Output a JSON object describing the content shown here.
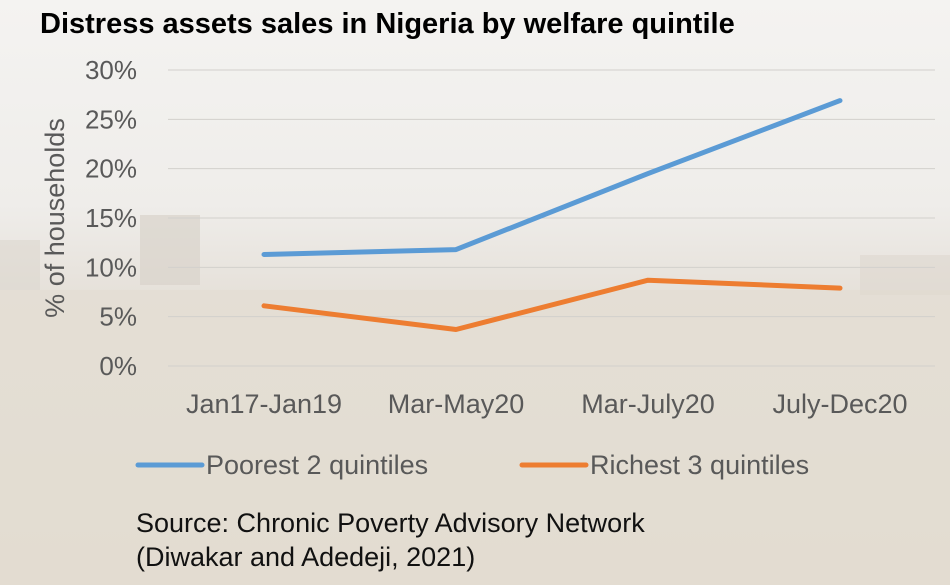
{
  "chart_data": {
    "type": "line",
    "title": "Distress assets sales in Nigeria by welfare quintile",
    "ylabel": "% of households",
    "xlabel": "",
    "categories": [
      "Jan17-Jan19",
      "Mar-May20",
      "Mar-July20",
      "July-Dec20"
    ],
    "y_ticks": [
      "0%",
      "5%",
      "10%",
      "15%",
      "20%",
      "25%",
      "30%"
    ],
    "ylim": [
      0,
      30
    ],
    "grid": true,
    "legend_position": "bottom",
    "series": [
      {
        "name": "Poorest 2 quintiles",
        "color": "#5b9bd5",
        "values": [
          11.3,
          11.8,
          19.5,
          26.9
        ]
      },
      {
        "name": "Richest 3 quintiles",
        "color": "#ed7d31",
        "values": [
          6.1,
          3.7,
          8.7,
          7.9
        ]
      }
    ]
  },
  "source": {
    "line1": "Source: Chronic Poverty Advisory Network",
    "line2": "(Diwakar and Adedeji, 2021)"
  }
}
